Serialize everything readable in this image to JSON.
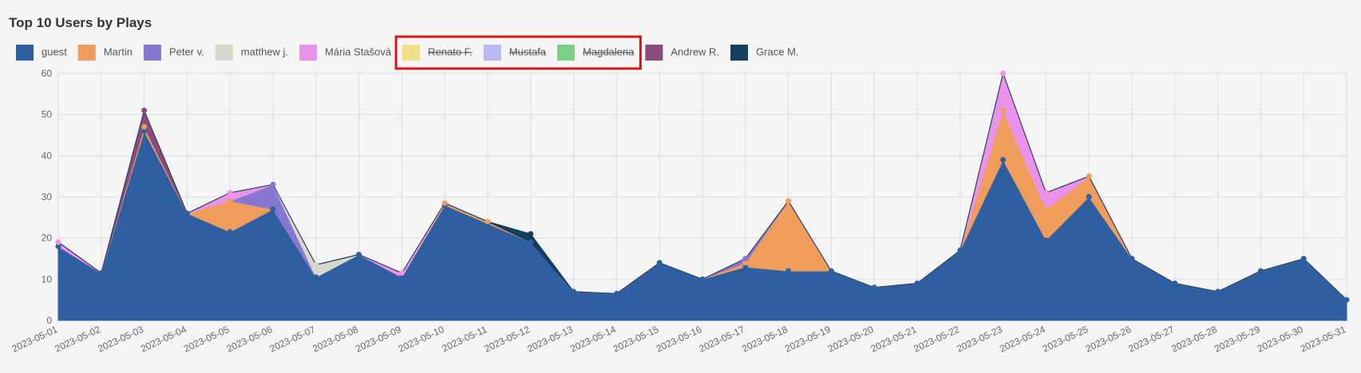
{
  "chart_data": {
    "type": "area",
    "stacked": true,
    "title": "Top 10 Users by Plays",
    "categories": [
      "2023-05-01",
      "2023-05-02",
      "2023-05-03",
      "2023-05-04",
      "2023-05-05",
      "2023-05-06",
      "2023-05-07",
      "2023-05-08",
      "2023-05-09",
      "2023-05-10",
      "2023-05-11",
      "2023-05-12",
      "2023-05-13",
      "2023-05-14",
      "2023-05-15",
      "2023-05-16",
      "2023-05-17",
      "2023-05-18",
      "2023-05-19",
      "2023-05-20",
      "2023-05-21",
      "2023-05-22",
      "2023-05-23",
      "2023-05-24",
      "2023-05-25",
      "2023-05-26",
      "2023-05-27",
      "2023-05-28",
      "2023-05-29",
      "2023-05-30",
      "2023-05-31"
    ],
    "series": [
      {
        "name": "guest",
        "color": "#2e5fa1",
        "values": [
          18,
          11.5,
          46,
          26,
          21.5,
          27,
          10.5,
          16,
          10.5,
          28,
          23.5,
          19,
          7,
          6.5,
          14,
          10,
          13,
          12,
          12,
          8,
          9,
          17,
          39,
          19.5,
          30,
          15,
          9,
          7,
          12,
          15,
          5
        ]
      },
      {
        "name": "Martin",
        "color": "#f09c5a",
        "values": [
          0,
          0,
          1,
          0,
          7.5,
          0,
          0,
          0,
          0,
          0.5,
          0.5,
          0,
          0,
          0,
          0,
          0,
          1,
          17,
          0,
          0,
          0,
          0,
          12,
          7.5,
          5,
          0,
          0,
          0,
          0,
          0,
          0
        ]
      },
      {
        "name": "Peter v.",
        "color": "#8877d2",
        "values": [
          0,
          0,
          0,
          0,
          0,
          6,
          0,
          0,
          0,
          0,
          0,
          0,
          0,
          0,
          0,
          0,
          1,
          0,
          0,
          0,
          0,
          0,
          0,
          0,
          0,
          0,
          0,
          0,
          0,
          0,
          0
        ]
      },
      {
        "name": "matthew j.",
        "color": "#d7d7cc",
        "values": [
          0,
          0,
          0,
          0,
          0,
          0,
          3,
          0,
          0,
          0,
          0,
          0,
          0,
          0,
          0,
          0,
          0,
          0,
          0,
          0,
          0,
          0,
          0,
          0,
          0,
          0,
          0,
          0,
          0,
          0,
          0
        ]
      },
      {
        "name": "Mária Stašová",
        "color": "#eb92eb",
        "values": [
          1,
          0,
          0,
          0,
          2,
          0,
          0,
          0,
          1,
          0,
          0,
          0,
          0,
          0,
          0,
          0,
          0,
          0,
          0,
          0,
          0,
          0,
          9,
          4,
          0,
          0,
          0,
          0,
          0,
          0,
          0
        ]
      },
      {
        "name": "Renato F.",
        "color": "#f1e085",
        "hidden": true,
        "values": [
          null,
          null,
          null,
          null,
          null,
          null,
          null,
          null,
          null,
          null,
          null,
          null,
          null,
          null,
          null,
          null,
          null,
          null,
          null,
          null,
          null,
          null,
          null,
          null,
          null,
          null,
          null,
          null,
          null,
          null,
          null
        ]
      },
      {
        "name": "Mustafa",
        "color": "#b9b9f1",
        "hidden": true,
        "values": [
          null,
          null,
          null,
          null,
          null,
          null,
          null,
          null,
          null,
          null,
          null,
          null,
          null,
          null,
          null,
          null,
          null,
          null,
          null,
          null,
          null,
          null,
          null,
          null,
          null,
          null,
          null,
          null,
          null,
          null,
          null
        ]
      },
      {
        "name": "Magdalena",
        "color": "#7ece86",
        "hidden": true,
        "values": [
          null,
          null,
          null,
          null,
          null,
          null,
          null,
          null,
          null,
          null,
          null,
          null,
          null,
          null,
          null,
          null,
          null,
          null,
          null,
          null,
          null,
          null,
          null,
          null,
          null,
          null,
          null,
          null,
          null,
          null,
          null
        ]
      },
      {
        "name": "Andrew R.",
        "color": "#8b4c7b",
        "values": [
          0,
          0,
          4,
          0,
          0,
          0,
          0,
          0,
          0,
          0,
          0,
          0,
          0,
          0,
          0,
          0,
          0,
          0,
          0,
          0,
          0,
          0,
          0,
          0,
          0,
          0,
          0,
          0,
          0,
          0,
          0
        ]
      },
      {
        "name": "Grace M.",
        "color": "#133f5c",
        "values": [
          0,
          0,
          0,
          0,
          0,
          0,
          0,
          0,
          0,
          0,
          0,
          2,
          0,
          0,
          0,
          0,
          0,
          0,
          0,
          0,
          0,
          0,
          0,
          0,
          0,
          0,
          0,
          0,
          0,
          0,
          0
        ]
      }
    ],
    "ylim": [
      0,
      60
    ],
    "yticks": [
      0,
      10,
      20,
      30,
      40,
      50,
      60
    ],
    "grid": true
  }
}
